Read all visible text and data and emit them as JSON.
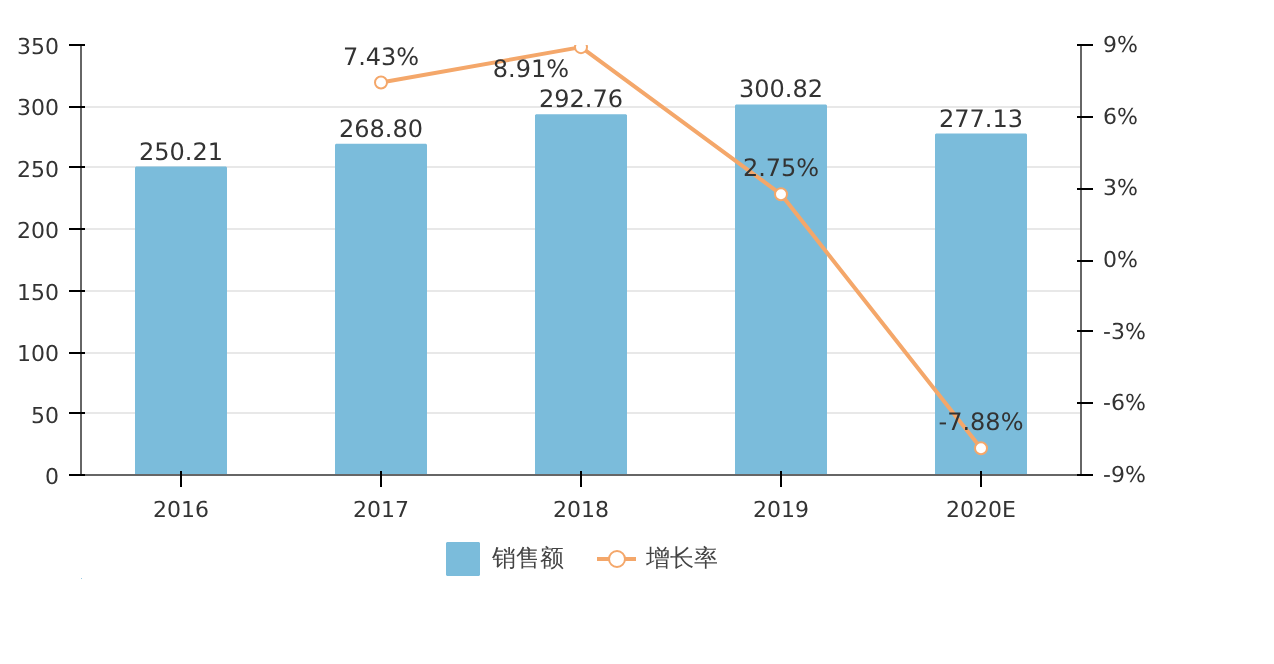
{
  "chart_data": {
    "type": "bar",
    "categories": [
      "2016",
      "2017",
      "2018",
      "2019",
      "2020E"
    ],
    "series": [
      {
        "name": "销售额",
        "color": "#7bbcdb",
        "values": [
          250.21,
          268.8,
          292.76,
          300.82,
          277.13
        ],
        "value_labels": [
          "250.21",
          "268.80",
          "292.76",
          "300.82",
          "277.13"
        ]
      },
      {
        "name": "增长率",
        "type": "line",
        "axis": "y2",
        "color": "#f4a76a",
        "values": [
          null,
          7.43,
          8.91,
          2.75,
          -7.88
        ],
        "value_labels": [
          null,
          "7.43%",
          "8.91%",
          "2.75%",
          "-7.88%"
        ]
      }
    ],
    "ylim": [
      0,
      350
    ],
    "yticks": [
      0,
      50,
      100,
      150,
      200,
      250,
      300,
      350
    ],
    "y2lim": [
      -9,
      9
    ],
    "y2ticks": [
      {
        "value": -9,
        "label": "-9%"
      },
      {
        "value": -6,
        "label": "-6%"
      },
      {
        "value": -3,
        "label": "-3%"
      },
      {
        "value": 0,
        "label": "0%"
      },
      {
        "value": 3,
        "label": "3%"
      },
      {
        "value": 6,
        "label": "6%"
      },
      {
        "value": 9,
        "label": "9%"
      }
    ],
    "grid": "y",
    "legend": "bottom",
    "marker": "circle",
    "line_style": "solid"
  }
}
